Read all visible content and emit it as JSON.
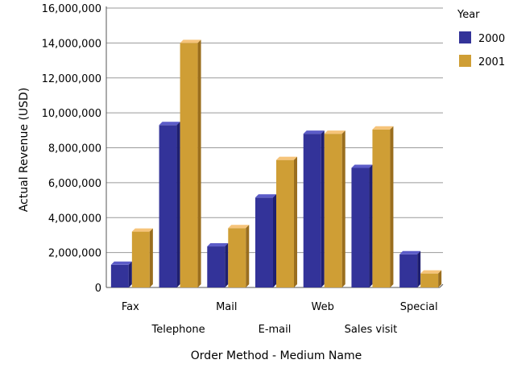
{
  "chart_data": {
    "type": "bar",
    "style": "3d-clustered-column",
    "categories": [
      "Fax",
      "Telephone",
      "Mail",
      "E-mail",
      "Web",
      "Sales visit",
      "Special"
    ],
    "series": [
      {
        "name": "2000",
        "values": [
          1300000,
          9300000,
          2350000,
          5150000,
          8800000,
          6850000,
          1900000
        ]
      },
      {
        "name": "2001",
        "values": [
          3200000,
          14000000,
          3400000,
          7300000,
          8800000,
          9050000,
          800000
        ]
      }
    ],
    "xlabel": "Order Method - Medium Name",
    "ylabel": "Actual Revenue (USD)",
    "ylim": [
      0,
      16000000
    ],
    "yticks": [
      0,
      2000000,
      4000000,
      6000000,
      8000000,
      10000000,
      12000000,
      14000000,
      16000000
    ],
    "ytick_labels": [
      "0",
      "2,000,000",
      "4,000,000",
      "6,000,000",
      "8,000,000",
      "10,000,000",
      "12,000,000",
      "14,000,000",
      "16,000,000"
    ],
    "grid": true,
    "legend": {
      "title": "Year",
      "placement": "right"
    },
    "colors": {
      "2000": {
        "front": "#333399",
        "top": "#5c5cc8",
        "side": "#1f1f70"
      },
      "2001": {
        "front": "#cf9e35",
        "top": "#f6c47a",
        "side": "#9a6e1e"
      },
      "grid": "#9a9a9a",
      "axis": "#555555"
    }
  }
}
